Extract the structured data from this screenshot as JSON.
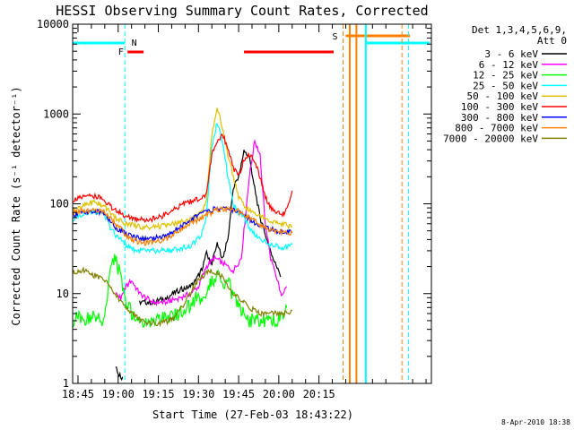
{
  "chart_data": {
    "type": "line",
    "title": "HESSI Observing Summary Count Rates, Corrected",
    "xlabel": "Start Time (27-Feb-03 18:43:22)",
    "ylabel": "Corrected Count Rate (s⁻¹ detector⁻¹)",
    "ylog": true,
    "ylim": [
      1,
      10000
    ],
    "xlim_min": [
      0,
      134
    ],
    "x_ticks": [
      {
        "min": 2,
        "label": "18:45"
      },
      {
        "min": 17,
        "label": "19:00"
      },
      {
        "min": 32,
        "label": "19:15"
      },
      {
        "min": 47,
        "label": "19:30"
      },
      {
        "min": 62,
        "label": "19:45"
      },
      {
        "min": 77,
        "label": "20:00"
      },
      {
        "min": 92,
        "label": "20:15"
      }
    ],
    "y_ticks": [
      {
        "value": 1,
        "label": "1"
      },
      {
        "value": 10,
        "label": "10"
      },
      {
        "value": 100,
        "label": "100"
      },
      {
        "value": 1000,
        "label": "1000"
      },
      {
        "value": 10000,
        "label": "10000"
      }
    ],
    "legend": {
      "title": "Det 1,3,4,5,6,9,",
      "subtitle": "Att 0",
      "placement": "right"
    },
    "series": [
      {
        "name": "3 - 6 keV",
        "color": "#000000",
        "x": [
          0,
          5,
          10,
          14,
          16,
          17,
          18,
          19,
          20,
          25,
          30,
          35,
          40,
          44,
          46,
          48,
          50,
          52,
          54,
          56,
          58,
          60,
          62,
          64,
          66,
          68,
          70,
          72,
          74,
          76,
          78,
          80
        ],
        "y": [
          null,
          null,
          null,
          null,
          1.5,
          1.3,
          1.2,
          1.1,
          null,
          8,
          8,
          9,
          11,
          12,
          14,
          18,
          28,
          22,
          35,
          25,
          40,
          150,
          200,
          380,
          330,
          150,
          70,
          45,
          30,
          20,
          15,
          null
        ]
      },
      {
        "name": "6 - 12 keV",
        "color": "#ff00ff",
        "x": [
          16,
          18,
          20,
          22,
          25,
          30,
          35,
          40,
          44,
          47,
          50,
          53,
          56,
          60,
          63,
          66,
          68,
          70,
          72,
          74,
          76,
          78,
          80
        ],
        "y": [
          10,
          9,
          12,
          14,
          10,
          8,
          8,
          9,
          10,
          12,
          20,
          25,
          22,
          18,
          25,
          200,
          500,
          350,
          60,
          25,
          15,
          10,
          12
        ]
      },
      {
        "name": "12 - 25 keV",
        "color": "#00ff00",
        "x": [
          0,
          2,
          4,
          6,
          8,
          10,
          12,
          14,
          16,
          18,
          20,
          22,
          24,
          26,
          28,
          30,
          32,
          34,
          36,
          38,
          40,
          42,
          44,
          46,
          48,
          50,
          52,
          54,
          56,
          58,
          60,
          62,
          64,
          66,
          68,
          70,
          72,
          74,
          76,
          78,
          80
        ],
        "y": [
          5,
          5.5,
          5,
          5.5,
          6,
          5,
          5,
          18,
          25,
          15,
          8,
          6,
          5,
          5,
          5,
          5,
          5,
          5.5,
          5,
          6,
          6,
          7,
          7,
          9,
          8,
          10,
          14,
          16,
          12,
          14,
          9,
          7,
          6,
          5,
          5,
          5,
          5,
          5,
          5,
          6,
          7
        ]
      },
      {
        "name": "25 - 50 keV",
        "color": "#00ffff",
        "x": [
          0,
          2,
          4,
          6,
          8,
          10,
          12,
          14,
          16,
          18,
          20,
          22,
          24,
          26,
          28,
          30,
          32,
          34,
          36,
          38,
          40,
          42,
          44,
          46,
          48,
          50,
          52,
          54,
          56,
          58,
          60,
          62,
          64,
          66,
          68,
          70,
          72,
          74,
          76,
          78,
          80,
          82
        ],
        "y": [
          65,
          72,
          78,
          80,
          82,
          80,
          75,
          55,
          45,
          40,
          35,
          32,
          30,
          30,
          30,
          30,
          30,
          30,
          30,
          31,
          32,
          33,
          34,
          38,
          45,
          75,
          450,
          800,
          500,
          200,
          100,
          80,
          70,
          55,
          45,
          40,
          38,
          35,
          34,
          32,
          33,
          35
        ]
      },
      {
        "name": "50 - 100 keV",
        "color": "#e0c000",
        "x": [
          0,
          2,
          4,
          6,
          8,
          10,
          12,
          14,
          16,
          18,
          20,
          22,
          24,
          26,
          28,
          30,
          32,
          34,
          36,
          38,
          40,
          42,
          44,
          46,
          48,
          50,
          52,
          54,
          56,
          58,
          60,
          62,
          64,
          66,
          68,
          70,
          72,
          74,
          76,
          78,
          80,
          82
        ],
        "y": [
          85,
          90,
          95,
          100,
          105,
          100,
          95,
          80,
          70,
          65,
          60,
          58,
          56,
          55,
          55,
          55,
          56,
          57,
          58,
          60,
          62,
          65,
          68,
          72,
          80,
          110,
          600,
          1200,
          700,
          350,
          200,
          120,
          95,
          85,
          80,
          75,
          70,
          65,
          62,
          60,
          58,
          55
        ]
      },
      {
        "name": "100 - 300 keV",
        "color": "#ff0000",
        "x": [
          0,
          2,
          4,
          6,
          8,
          10,
          12,
          14,
          16,
          18,
          20,
          22,
          24,
          26,
          28,
          30,
          32,
          34,
          36,
          38,
          40,
          42,
          44,
          46,
          48,
          50,
          52,
          54,
          56,
          58,
          60,
          62,
          64,
          66,
          68,
          70,
          72,
          74,
          76,
          78,
          80,
          82
        ],
        "y": [
          110,
          115,
          118,
          120,
          122,
          118,
          110,
          95,
          85,
          78,
          72,
          70,
          68,
          67,
          67,
          68,
          70,
          75,
          80,
          88,
          95,
          100,
          105,
          110,
          115,
          130,
          350,
          480,
          600,
          400,
          250,
          200,
          320,
          350,
          300,
          200,
          120,
          90,
          80,
          75,
          85,
          140
        ]
      },
      {
        "name": "300 - 800 keV",
        "color": "#0000ff",
        "x": [
          0,
          2,
          4,
          6,
          8,
          10,
          12,
          14,
          16,
          18,
          20,
          22,
          24,
          26,
          28,
          30,
          32,
          34,
          36,
          38,
          40,
          42,
          44,
          46,
          48,
          50,
          52,
          54,
          56,
          58,
          60,
          62,
          64,
          66,
          68,
          70,
          72,
          74,
          76,
          78,
          80,
          82
        ],
        "y": [
          75,
          78,
          80,
          82,
          83,
          80,
          75,
          65,
          55,
          50,
          46,
          44,
          42,
          41,
          41,
          41,
          42,
          44,
          46,
          50,
          55,
          60,
          65,
          72,
          78,
          82,
          86,
          88,
          89,
          88,
          85,
          80,
          75,
          68,
          62,
          58,
          55,
          52,
          50,
          49,
          48,
          48
        ]
      },
      {
        "name": "800 - 7000 keV",
        "color": "#ff8000",
        "x": [
          0,
          2,
          4,
          6,
          8,
          10,
          12,
          14,
          16,
          18,
          20,
          22,
          24,
          26,
          28,
          30,
          32,
          34,
          36,
          38,
          40,
          42,
          44,
          46,
          48,
          50,
          52,
          54,
          56,
          58,
          60,
          62,
          64,
          66,
          68,
          70,
          72,
          74,
          76,
          78,
          80,
          82
        ],
        "y": [
          80,
          82,
          84,
          85,
          86,
          84,
          80,
          70,
          60,
          52,
          45,
          40,
          38,
          37,
          37,
          37,
          38,
          40,
          42,
          46,
          50,
          55,
          60,
          65,
          70,
          75,
          80,
          85,
          88,
          88,
          86,
          82,
          76,
          70,
          64,
          58,
          54,
          52,
          50,
          49,
          48,
          48
        ]
      },
      {
        "name": "7000 - 20000 keV",
        "color": "#808000",
        "x": [
          0,
          2,
          4,
          6,
          8,
          10,
          12,
          14,
          16,
          18,
          20,
          22,
          24,
          26,
          28,
          30,
          32,
          34,
          36,
          38,
          40,
          42,
          44,
          46,
          48,
          50,
          52,
          54,
          56,
          58,
          60,
          62,
          64,
          66,
          68,
          70,
          72,
          74,
          76,
          78,
          80,
          82
        ],
        "y": [
          17,
          18,
          18,
          17,
          16,
          15,
          14,
          12,
          10,
          8,
          7,
          6,
          5.5,
          5,
          4.8,
          4.7,
          4.7,
          4.8,
          5,
          5.5,
          6.5,
          8,
          10,
          13,
          15,
          17,
          18,
          17,
          15,
          12,
          10,
          9,
          8,
          7,
          6.5,
          6,
          6,
          6,
          6,
          6,
          6,
          6.5
        ]
      }
    ],
    "flags": [
      {
        "label": "N",
        "color": "#00ffff"
      },
      {
        "label": "F",
        "color": "#ff0000"
      },
      {
        "label": "S",
        "color": "#ff8000"
      }
    ],
    "footer": "8-Apr-2010 18:38"
  }
}
